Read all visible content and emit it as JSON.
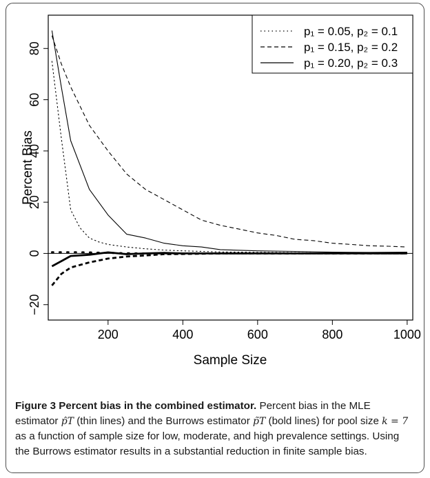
{
  "chart_data": {
    "type": "line",
    "xlabel": "Sample Size",
    "ylabel": "Percent Bias",
    "xlim": [
      40,
      1015
    ],
    "ylim": [
      -26,
      93
    ],
    "x_ticks": [
      "200",
      "400",
      "600",
      "800",
      "1000"
    ],
    "y_ticks": [
      "−20",
      "0",
      "20",
      "40",
      "60",
      "80"
    ],
    "x_tick_values": [
      200,
      400,
      600,
      800,
      1000
    ],
    "y_tick_values": [
      -20,
      0,
      20,
      40,
      60,
      80
    ],
    "reference_line": 0,
    "legend_position": "top-right",
    "legend": [
      {
        "label": "p₁ = 0.05, p₂ = 0.1",
        "style": "dotted"
      },
      {
        "label": "p₁ = 0.15, p₂ = 0.2",
        "style": "dashed"
      },
      {
        "label": "p₁ = 0.20, p₂ = 0.3",
        "style": "solid"
      }
    ],
    "series": [
      {
        "estimator": "MLE",
        "style": "dotted",
        "weight": "thin",
        "x": [
          50,
          75,
          100,
          125,
          150,
          175,
          200,
          250,
          300,
          350,
          400,
          450,
          500,
          600,
          700,
          800,
          900,
          1000
        ],
        "y": [
          75,
          45,
          17,
          10,
          6,
          4.5,
          3.5,
          2.5,
          1.8,
          1.3,
          1,
          0.8,
          0.6,
          0.4,
          0.3,
          0.2,
          0.2,
          0.2
        ]
      },
      {
        "estimator": "MLE",
        "style": "dashed",
        "weight": "thin",
        "x": [
          50,
          75,
          100,
          150,
          200,
          250,
          300,
          350,
          400,
          450,
          500,
          550,
          600,
          650,
          700,
          750,
          800,
          850,
          900,
          950,
          1000
        ],
        "y": [
          85,
          74,
          65,
          50,
          40,
          31,
          25,
          21,
          17,
          13,
          11,
          9.5,
          8,
          7,
          5.5,
          5,
          4,
          3.5,
          3,
          2.8,
          2.5
        ]
      },
      {
        "estimator": "MLE",
        "style": "solid",
        "weight": "thin",
        "x": [
          50,
          75,
          100,
          150,
          200,
          250,
          300,
          350,
          400,
          450,
          500,
          600,
          700,
          800,
          900,
          1000
        ],
        "y": [
          87,
          65,
          44,
          25,
          15,
          7.5,
          6,
          4,
          3,
          2.5,
          1.5,
          1,
          0.8,
          0.5,
          0.4,
          0.5
        ]
      },
      {
        "estimator": "Burrows",
        "style": "dotted",
        "weight": "bold",
        "x": [
          50,
          100,
          150,
          200,
          250,
          300,
          400,
          500,
          600,
          700,
          800,
          900,
          1000
        ],
        "y": [
          0.5,
          0.5,
          0.4,
          0.2,
          0.1,
          0,
          0,
          0,
          0,
          0,
          0,
          0,
          0
        ]
      },
      {
        "estimator": "Burrows",
        "style": "dashed",
        "weight": "bold",
        "x": [
          50,
          75,
          100,
          150,
          200,
          250,
          300,
          350,
          400,
          500,
          600,
          700,
          800,
          900,
          1000
        ],
        "y": [
          -12.5,
          -8,
          -5.5,
          -3.5,
          -2,
          -1.2,
          -0.8,
          -0.3,
          -0.2,
          0,
          0,
          0,
          0,
          0,
          0
        ]
      },
      {
        "estimator": "Burrows",
        "style": "solid",
        "weight": "bold",
        "x": [
          50,
          75,
          100,
          150,
          200,
          250,
          300,
          350,
          400,
          500,
          600,
          700,
          800,
          900,
          1000
        ],
        "y": [
          -5,
          -3,
          -1,
          -0.5,
          0.4,
          -0.3,
          0,
          0.2,
          0,
          0,
          0,
          0,
          0,
          0,
          0
        ]
      }
    ]
  },
  "caption": {
    "title": "Figure 3 Percent bias in the combined estimator.",
    "text_1": " Percent bias in the MLE estimator ",
    "symbol_1": "p̂T",
    "text_2": " (thin lines) and the Burrows estimator ",
    "symbol_2": "p̃T",
    "text_3": " (bold lines) for pool size ",
    "symbol_3": "k = 7",
    "text_4": " as a function of sample size for low, moderate, and high prevalence settings. Using the Burrows estimator results in a substantial reduction in finite sample bias."
  }
}
